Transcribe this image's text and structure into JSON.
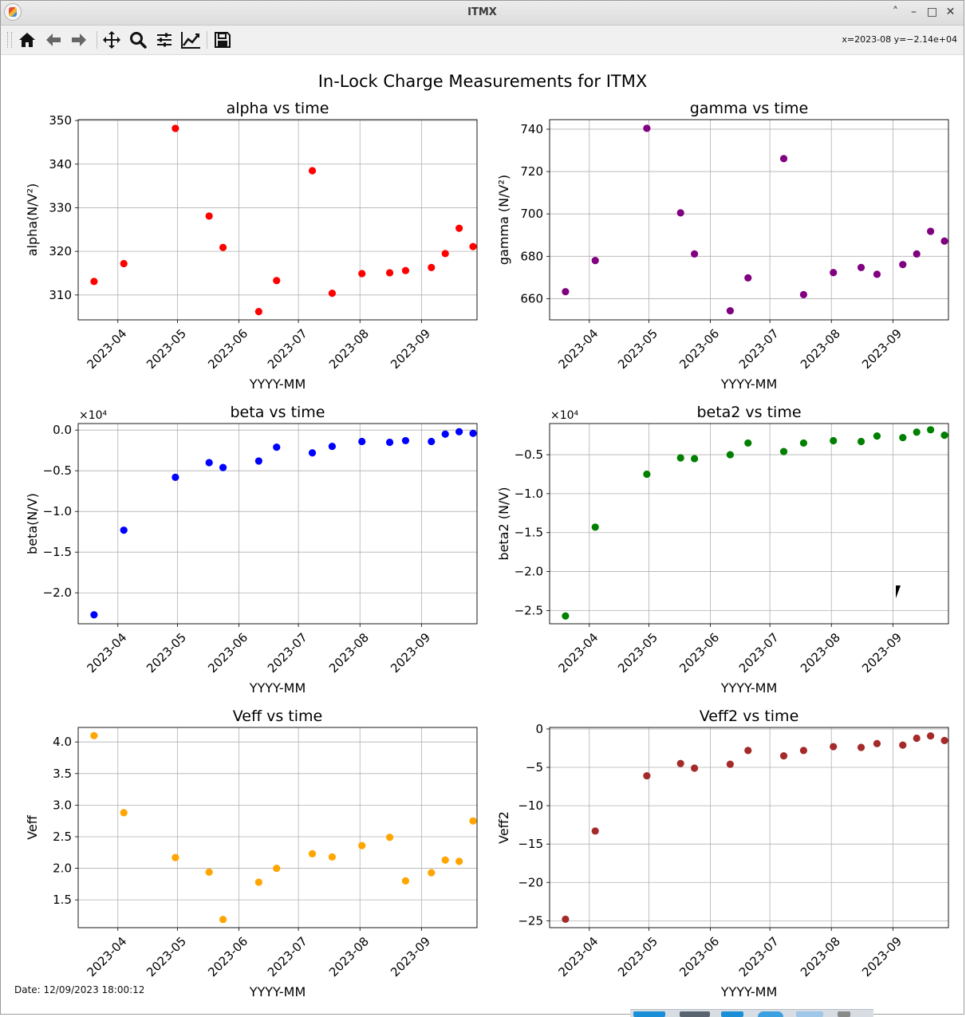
{
  "window": {
    "title": "ITMX",
    "buttons": [
      "˄",
      "–",
      "□",
      "✕"
    ]
  },
  "toolbar": {
    "tools": [
      "home-icon",
      "back-arrow-icon",
      "forward-arrow-icon",
      "pan-move-icon",
      "zoom-magnifier-icon",
      "subplot-config-sliders-icon",
      "edit-axes-curve-icon",
      "save-floppy-icon"
    ],
    "coords_text": "x=2023-08 y=−2.14e+04"
  },
  "figure": {
    "suptitle": "In-Lock Charge Measurements for ITMX",
    "date_text": "Date: 12/09/2023 18:00:12"
  },
  "chart_data": [
    {
      "type": "scatter",
      "title": "alpha vs time",
      "xlabel": "YYYY-MM",
      "ylabel": "alpha(N/V²)",
      "color": "#ff0000",
      "x": [
        "2023-03-20",
        "2023-04-04",
        "2023-04-30",
        "2023-05-17",
        "2023-05-24",
        "2023-06-11",
        "2023-06-20",
        "2023-07-08",
        "2023-07-18",
        "2023-08-02",
        "2023-08-16",
        "2023-08-24",
        "2023-09-06",
        "2023-09-13",
        "2023-09-20",
        "2023-09-27"
      ],
      "y": [
        313.1,
        317.2,
        348.2,
        328.1,
        320.9,
        306.2,
        313.3,
        338.5,
        310.4,
        314.9,
        315.1,
        315.6,
        316.3,
        319.5,
        325.3,
        321.1
      ],
      "xlim": [
        "2023-03-12",
        "2023-09-29"
      ],
      "ylim": [
        304.3,
        350.2
      ],
      "yticks": [
        310,
        320,
        330,
        340,
        350
      ],
      "ytick_labels": [
        "310",
        "320",
        "330",
        "340",
        "350"
      ],
      "xticks": [
        "2023-04-01",
        "2023-05-01",
        "2023-06-01",
        "2023-07-01",
        "2023-08-01",
        "2023-09-01"
      ],
      "xtick_labels": [
        "2023-04",
        "2023-05",
        "2023-06",
        "2023-07",
        "2023-08",
        "2023-09"
      ],
      "grid": true
    },
    {
      "type": "scatter",
      "title": "gamma vs time",
      "xlabel": "YYYY-MM",
      "ylabel": "gamma (N/V²)",
      "color": "#800080",
      "x": [
        "2023-03-20",
        "2023-04-04",
        "2023-04-30",
        "2023-05-17",
        "2023-05-24",
        "2023-06-11",
        "2023-06-20",
        "2023-07-08",
        "2023-07-18",
        "2023-08-02",
        "2023-08-16",
        "2023-08-24",
        "2023-09-06",
        "2023-09-13",
        "2023-09-20",
        "2023-09-27"
      ],
      "y": [
        663.3,
        678.0,
        740.4,
        700.5,
        681.1,
        654.3,
        669.8,
        726.1,
        661.9,
        672.3,
        674.7,
        671.5,
        676.1,
        681.1,
        691.8,
        687.2
      ],
      "xlim": [
        "2023-03-12",
        "2023-09-29"
      ],
      "ylim": [
        650.0,
        744.5
      ],
      "yticks": [
        660,
        680,
        700,
        720,
        740
      ],
      "ytick_labels": [
        "660",
        "680",
        "700",
        "720",
        "740"
      ],
      "xticks": [
        "2023-04-01",
        "2023-05-01",
        "2023-06-01",
        "2023-07-01",
        "2023-08-01",
        "2023-09-01"
      ],
      "xtick_labels": [
        "2023-04",
        "2023-05",
        "2023-06",
        "2023-07",
        "2023-08",
        "2023-09"
      ],
      "grid": true
    },
    {
      "type": "scatter",
      "title": "beta vs time",
      "xlabel": "YYYY-MM",
      "ylabel": "beta(N/V)",
      "offset_text": "×10⁴",
      "color": "#0000ff",
      "x": [
        "2023-03-20",
        "2023-04-04",
        "2023-04-30",
        "2023-05-17",
        "2023-05-24",
        "2023-06-11",
        "2023-06-20",
        "2023-07-08",
        "2023-07-18",
        "2023-08-02",
        "2023-08-16",
        "2023-08-24",
        "2023-09-06",
        "2023-09-13",
        "2023-09-20",
        "2023-09-27"
      ],
      "y": [
        -2.27,
        -1.23,
        -0.58,
        -0.4,
        -0.46,
        -0.38,
        -0.21,
        -0.28,
        -0.2,
        -0.14,
        -0.15,
        -0.13,
        -0.14,
        -0.05,
        -0.02,
        -0.04
      ],
      "xlim": [
        "2023-03-12",
        "2023-09-29"
      ],
      "ylim": [
        -2.38,
        0.08
      ],
      "yticks": [
        -2.0,
        -1.5,
        -1.0,
        -0.5,
        0.0
      ],
      "ytick_labels": [
        "−2.0",
        "−1.5",
        "−1.0",
        "−0.5",
        "0.0"
      ],
      "xticks": [
        "2023-04-01",
        "2023-05-01",
        "2023-06-01",
        "2023-07-01",
        "2023-08-01",
        "2023-09-01"
      ],
      "xtick_labels": [
        "2023-04",
        "2023-05",
        "2023-06",
        "2023-07",
        "2023-08",
        "2023-09"
      ],
      "grid": true
    },
    {
      "type": "scatter",
      "title": "beta2 vs time",
      "xlabel": "YYYY-MM",
      "ylabel": "beta2 (N/V)",
      "offset_text": "×10⁴",
      "color": "#008000",
      "x": [
        "2023-03-20",
        "2023-04-04",
        "2023-04-30",
        "2023-05-17",
        "2023-05-24",
        "2023-06-11",
        "2023-06-20",
        "2023-07-08",
        "2023-07-18",
        "2023-08-02",
        "2023-08-16",
        "2023-08-24",
        "2023-09-06",
        "2023-09-13",
        "2023-09-20",
        "2023-09-27"
      ],
      "y": [
        -2.57,
        -1.43,
        -0.75,
        -0.54,
        -0.55,
        -0.5,
        -0.35,
        -0.46,
        -0.35,
        -0.32,
        -0.33,
        -0.26,
        -0.28,
        -0.21,
        -0.18,
        -0.25
      ],
      "xlim": [
        "2023-03-12",
        "2023-09-29"
      ],
      "ylim": [
        -2.67,
        -0.1
      ],
      "yticks": [
        -2.5,
        -2.0,
        -1.5,
        -1.0,
        -0.5
      ],
      "ytick_labels": [
        "−2.5",
        "−2.0",
        "−1.5",
        "−1.0",
        "−0.5"
      ],
      "xticks": [
        "2023-04-01",
        "2023-05-01",
        "2023-06-01",
        "2023-07-01",
        "2023-08-01",
        "2023-09-01"
      ],
      "xtick_labels": [
        "2023-04",
        "2023-05",
        "2023-06",
        "2023-07",
        "2023-08",
        "2023-09"
      ],
      "grid": true
    },
    {
      "type": "scatter",
      "title": "Veff vs time",
      "xlabel": "YYYY-MM",
      "ylabel": "Veff",
      "color": "#ffa500",
      "x": [
        "2023-03-20",
        "2023-04-04",
        "2023-04-30",
        "2023-05-17",
        "2023-05-24",
        "2023-06-11",
        "2023-06-20",
        "2023-07-08",
        "2023-07-18",
        "2023-08-02",
        "2023-08-16",
        "2023-08-24",
        "2023-09-06",
        "2023-09-13",
        "2023-09-20",
        "2023-09-27"
      ],
      "y": [
        4.1,
        2.88,
        2.17,
        1.94,
        1.19,
        1.78,
        2.0,
        2.23,
        2.18,
        2.36,
        2.49,
        1.8,
        1.93,
        2.13,
        2.11,
        2.75
      ],
      "xlim": [
        "2023-03-12",
        "2023-09-29"
      ],
      "ylim": [
        1.06,
        4.23
      ],
      "yticks": [
        1.5,
        2.0,
        2.5,
        3.0,
        3.5,
        4.0
      ],
      "ytick_labels": [
        "1.5",
        "2.0",
        "2.5",
        "3.0",
        "3.5",
        "4.0"
      ],
      "xticks": [
        "2023-04-01",
        "2023-05-01",
        "2023-06-01",
        "2023-07-01",
        "2023-08-01",
        "2023-09-01"
      ],
      "xtick_labels": [
        "2023-04",
        "2023-05",
        "2023-06",
        "2023-07",
        "2023-08",
        "2023-09"
      ],
      "grid": true
    },
    {
      "type": "scatter",
      "title": "Veff2 vs time",
      "xlabel": "YYYY-MM",
      "ylabel": "Veff2",
      "color": "#a52a2a",
      "x": [
        "2023-03-20",
        "2023-04-04",
        "2023-04-30",
        "2023-05-17",
        "2023-05-24",
        "2023-06-11",
        "2023-06-20",
        "2023-07-08",
        "2023-07-18",
        "2023-08-02",
        "2023-08-16",
        "2023-08-24",
        "2023-09-06",
        "2023-09-13",
        "2023-09-20",
        "2023-09-27"
      ],
      "y": [
        -24.8,
        -13.3,
        -6.1,
        -4.5,
        -5.1,
        -4.6,
        -2.8,
        -3.5,
        -2.8,
        -2.3,
        -2.4,
        -1.9,
        -2.1,
        -1.2,
        -0.9,
        -1.5
      ],
      "xlim": [
        "2023-03-12",
        "2023-09-29"
      ],
      "ylim": [
        -25.9,
        0.2
      ],
      "yticks": [
        -25,
        -20,
        -15,
        -10,
        -5,
        0
      ],
      "ytick_labels": [
        "−25",
        "−20",
        "−15",
        "−10",
        "−5",
        "0"
      ],
      "xticks": [
        "2023-04-01",
        "2023-05-01",
        "2023-06-01",
        "2023-07-01",
        "2023-08-01",
        "2023-09-01"
      ],
      "xtick_labels": [
        "2023-04",
        "2023-05",
        "2023-06",
        "2023-07",
        "2023-08",
        "2023-09"
      ],
      "grid": true
    }
  ]
}
